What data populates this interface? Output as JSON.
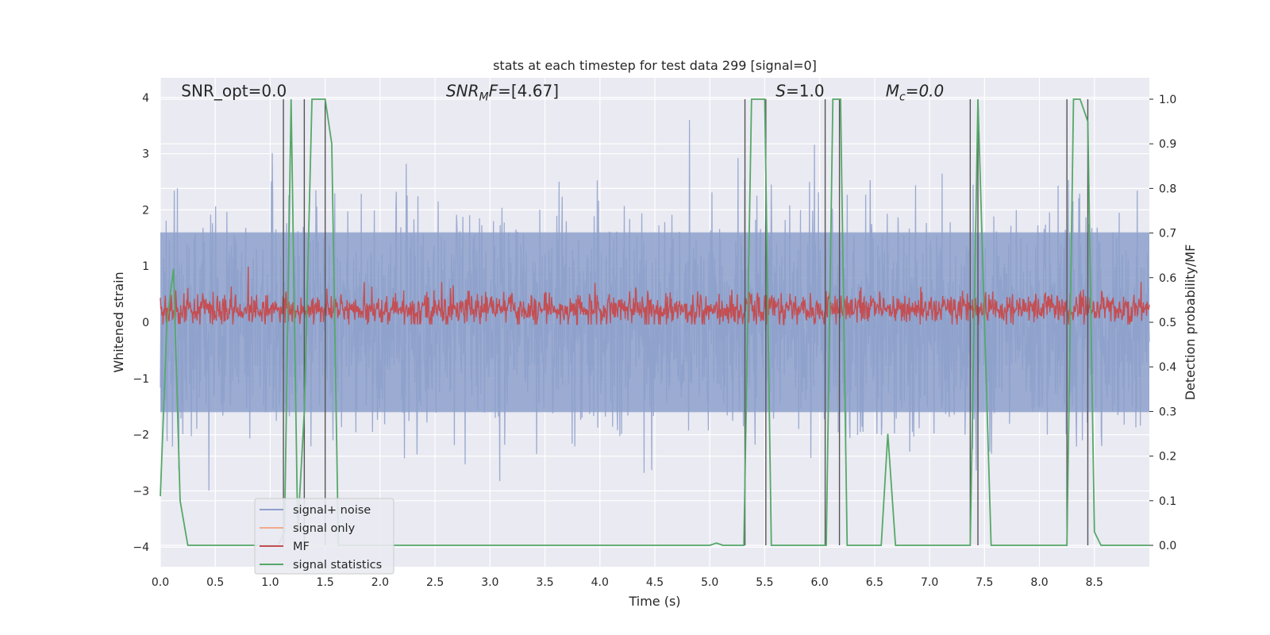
{
  "chart_data": {
    "type": "line",
    "title": "stats at each timestep for test data 299 [signal=0]",
    "xlabel": "Time (s)",
    "ylabel": "Whitened strain",
    "y2label": "Detection probability/MF",
    "xlim": [
      0,
      9.0
    ],
    "ylim": [
      -4.35,
      4.35
    ],
    "y2lim": [
      -0.048,
      1.048
    ],
    "x_ticks": [
      "0.0",
      "0.5",
      "1.0",
      "1.5",
      "2.0",
      "2.5",
      "3.0",
      "3.5",
      "4.0",
      "4.5",
      "5.0",
      "5.5",
      "6.0",
      "6.5",
      "7.0",
      "7.5",
      "8.0",
      "8.5"
    ],
    "y_ticks": [
      "4",
      "3",
      "2",
      "1",
      "0",
      "−1",
      "−2",
      "−3",
      "−4"
    ],
    "y2_ticks": [
      "1.0",
      "0.9",
      "0.8",
      "0.7",
      "0.6",
      "0.5",
      "0.4",
      "0.3",
      "0.2",
      "0.1",
      "0.0"
    ],
    "grid": true,
    "annotations": [
      {
        "name": "snr-opt",
        "text": "SNR_opt=0.0",
        "x": 0.19,
        "y": 4.1
      },
      {
        "name": "snr-mf",
        "text": "SNR",
        "sub": "M",
        "rest": "F=[4.67]",
        "italic": true,
        "x": 2.6,
        "y": 4.1
      },
      {
        "name": "s-value",
        "text": "S",
        "rest": "=1.0",
        "italic": true,
        "x": 5.6,
        "y": 4.1
      },
      {
        "name": "mc-value",
        "text": "M",
        "sub": "c",
        "rest": "=0.0",
        "italic": true,
        "x": 6.6,
        "y": 4.1
      }
    ],
    "legend": {
      "placement": "lower-left",
      "entries": [
        {
          "label": "signal+ noise",
          "color": "#8da0cb"
        },
        {
          "label": "signal only",
          "color": "#f2a98c"
        },
        {
          "label": "MF",
          "color": "#c44e52"
        },
        {
          "label": "signal statistics",
          "color": "#55a868"
        }
      ]
    },
    "series": [
      {
        "name": "signal+ noise",
        "kind": "noise",
        "color": "#8da0cb",
        "envelope": [
          -1.6,
          1.6
        ],
        "peak_range": [
          -3.7,
          3.6
        ]
      },
      {
        "name": "signal only",
        "color": "#f2a98c",
        "values": []
      },
      {
        "name": "MF",
        "kind": "noise",
        "color": "#c44e52",
        "axis": "y2",
        "center": 0.53,
        "spread": [
          0.495,
          0.59
        ]
      },
      {
        "name": "signal statistics",
        "color": "#55a868",
        "axis": "y2",
        "x": [
          0.0,
          0.06,
          0.12,
          0.18,
          0.25,
          1.07,
          1.13,
          1.19,
          1.25,
          1.31,
          1.38,
          1.5,
          1.56,
          1.62,
          5.0,
          5.06,
          5.12,
          5.31,
          5.38,
          5.5,
          5.56,
          6.06,
          6.12,
          6.19,
          6.25,
          6.31,
          6.56,
          6.62,
          6.69,
          7.37,
          7.44,
          7.56,
          7.62,
          7.87,
          8.25,
          8.31,
          8.37,
          8.44,
          8.5,
          8.56,
          9.0
        ],
        "y": [
          0.11,
          0.5,
          0.62,
          0.1,
          0.0,
          0.0,
          0.03,
          1.0,
          0.03,
          0.3,
          1.0,
          1.0,
          0.9,
          0.0,
          0.0,
          0.005,
          0.0,
          0.0,
          1.0,
          1.0,
          0.0,
          0.0,
          1.0,
          1.0,
          0.0,
          0.0,
          0.0,
          0.25,
          0.0,
          0.0,
          1.0,
          0.0,
          0.0,
          0.0,
          0.0,
          1.0,
          1.0,
          0.95,
          0.03,
          0.0,
          0.0
        ]
      }
    ],
    "vertical_lines": [
      1.12,
      1.31,
      1.5,
      5.32,
      5.51,
      6.05,
      6.18,
      7.37,
      7.44,
      8.25,
      8.44
    ]
  }
}
